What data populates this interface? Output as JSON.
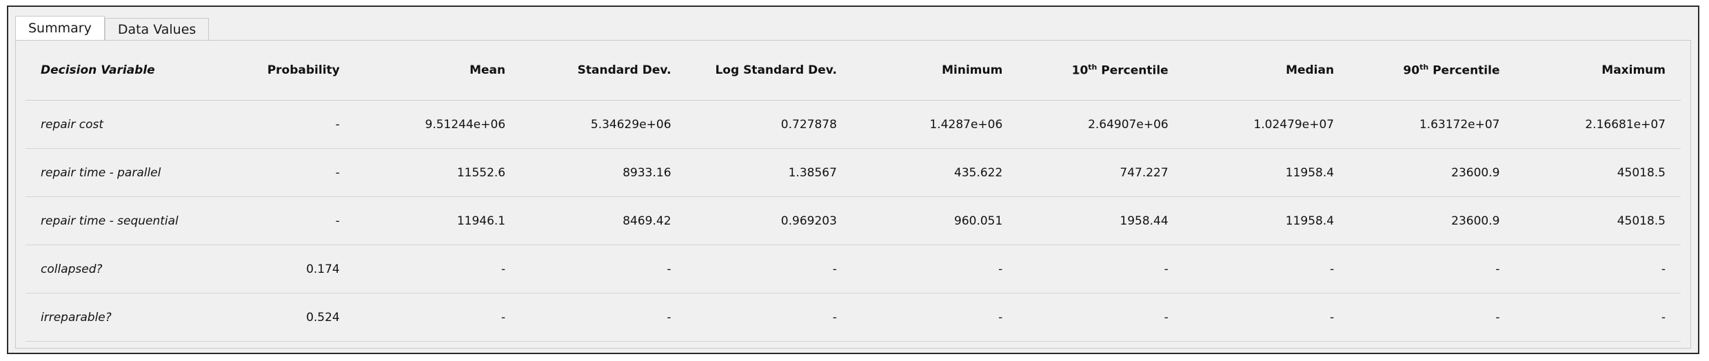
{
  "tabs": [
    {
      "label": "Summary",
      "active": true
    },
    {
      "label": "Data Values",
      "active": false
    }
  ],
  "table": {
    "headers": [
      {
        "text": "Decision Variable"
      },
      {
        "text": "Probability"
      },
      {
        "text": "Mean"
      },
      {
        "text": "Standard Dev."
      },
      {
        "text": "Log Standard Dev."
      },
      {
        "text": "Minimum"
      },
      {
        "pre": "10",
        "sup": "th",
        "post": " Percentile"
      },
      {
        "text": "Median"
      },
      {
        "pre": "90",
        "sup": "th",
        "post": " Percentile"
      },
      {
        "text": "Maximum"
      }
    ],
    "rows": [
      [
        "repair cost",
        "-",
        "9.51244e+06",
        "5.34629e+06",
        "0.727878",
        "1.4287e+06",
        "2.64907e+06",
        "1.02479e+07",
        "1.63172e+07",
        "2.16681e+07"
      ],
      [
        "repair time - parallel",
        "-",
        "11552.6",
        "8933.16",
        "1.38567",
        "435.622",
        "747.227",
        "11958.4",
        "23600.9",
        "45018.5"
      ],
      [
        "repair time - sequential",
        "-",
        "11946.1",
        "8469.42",
        "0.969203",
        "960.051",
        "1958.44",
        "11958.4",
        "23600.9",
        "45018.5"
      ],
      [
        "collapsed?",
        "0.174",
        "-",
        "-",
        "-",
        "-",
        "-",
        "-",
        "-",
        "-"
      ],
      [
        "irreparable?",
        "0.524",
        "-",
        "-",
        "-",
        "-",
        "-",
        "-",
        "-",
        "-"
      ]
    ]
  }
}
